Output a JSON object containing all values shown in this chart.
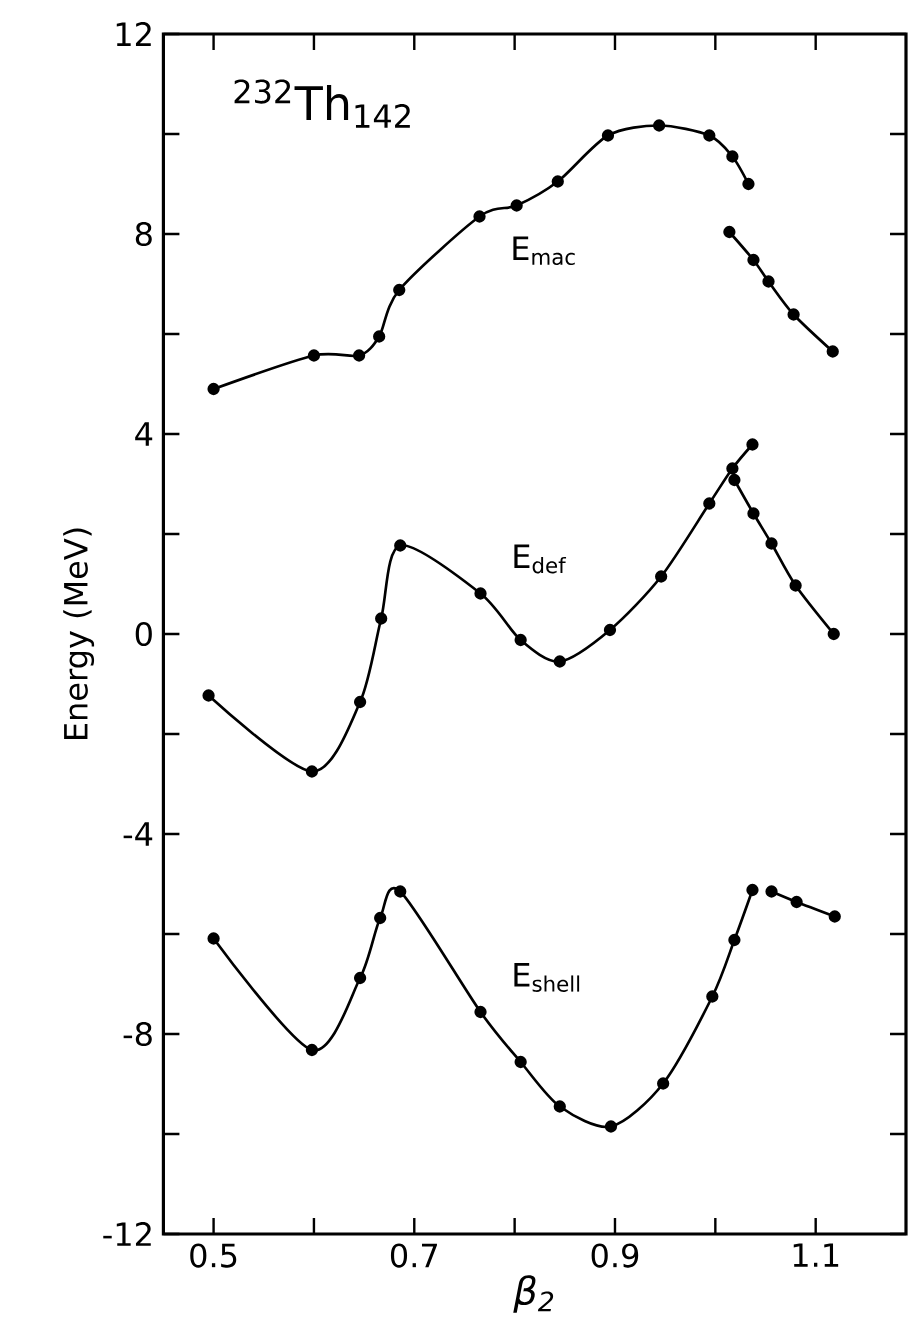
{
  "chart_data": {
    "type": "line",
    "title": "$^{232}$Th$_{142}$",
    "xlabel": "β$_{2}$",
    "ylabel": "Energy (MeV)",
    "xlim": [
      0.45,
      1.19
    ],
    "ylim": [
      -12,
      12
    ],
    "xticks": [
      0.5,
      {
        "value": 0.6,
        "label": null
      },
      0.7,
      {
        "value": 0.8,
        "label": null
      },
      0.9,
      {
        "value": 1.0,
        "label": null
      },
      1.1
    ],
    "yticks": [
      -12,
      {
        "value": -10,
        "label": null
      },
      -8,
      {
        "value": -6,
        "label": null
      },
      -4,
      {
        "value": -2,
        "label": null
      },
      0,
      {
        "value": 2,
        "label": null
      },
      4,
      {
        "value": 6,
        "label": null
      },
      8,
      {
        "value": 10,
        "label": null
      },
      12
    ],
    "marker": "circle",
    "line_style": "solid",
    "grid": false,
    "legend": false,
    "series": [
      {
        "name": "E$_{mac}$",
        "color": "#000000",
        "x": [
          0.5,
          0.6,
          0.645,
          0.665,
          0.685,
          0.765,
          0.802,
          0.843,
          0.893,
          0.944,
          0.994,
          1.017,
          1.033
        ],
        "values": [
          4.9,
          5.57,
          5.57,
          5.95,
          6.88,
          8.35,
          8.57,
          9.05,
          9.97,
          10.17,
          9.97,
          9.55,
          9.0
        ]
      },
      {
        "color": "#000000",
        "x": [
          1.014,
          1.038,
          1.053,
          1.078,
          1.117
        ],
        "values": [
          8.04,
          7.48,
          7.05,
          6.39,
          5.65
        ]
      },
      {
        "name": "E$_{def}$",
        "color": "#000000",
        "x": [
          0.495,
          0.598,
          0.646,
          0.667,
          0.686,
          0.766,
          0.806,
          0.845,
          0.895,
          0.946,
          0.994,
          1.017,
          1.037
        ],
        "values": [
          -1.23,
          -2.75,
          -1.36,
          0.31,
          1.77,
          0.81,
          -0.12,
          -0.55,
          0.08,
          1.15,
          2.61,
          3.31,
          3.79
        ]
      },
      {
        "color": "#000000",
        "x": [
          1.019,
          1.038,
          1.056,
          1.08,
          1.118
        ],
        "values": [
          3.08,
          2.41,
          1.81,
          0.97,
          0.0
        ]
      },
      {
        "name": "E$_{shell}$",
        "color": "#000000",
        "x": [
          0.5,
          0.598,
          0.646,
          0.666,
          0.686,
          0.766,
          0.806,
          0.845,
          0.896,
          0.948,
          0.997,
          1.019,
          1.037
        ],
        "values": [
          -6.09,
          -8.32,
          -6.88,
          -5.68,
          -5.15,
          -7.56,
          -8.56,
          -9.45,
          -9.85,
          -8.99,
          -7.25,
          -6.12,
          -5.12
        ]
      },
      {
        "color": "#000000",
        "x": [
          1.056,
          1.081,
          1.119
        ],
        "values": [
          -5.15,
          -5.36,
          -5.65
        ]
      }
    ]
  }
}
